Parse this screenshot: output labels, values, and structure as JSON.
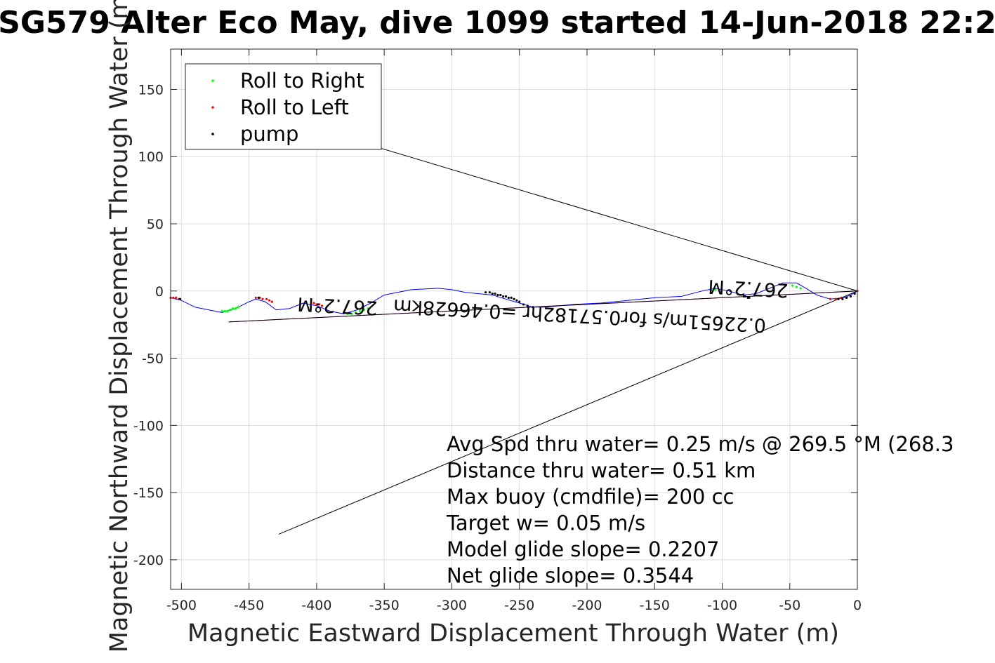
{
  "chart_data": {
    "type": "scatter",
    "title": "SG579 Alter Eco May, dive 1099 started 14-Jun-2018 22:2",
    "xlabel": "Magnetic Eastward Displacement Through Water (m)",
    "ylabel": "Magnetic Northward Displacement Through Water (m)",
    "xlim": [
      -508,
      0
    ],
    "ylim": [
      -222,
      180
    ],
    "grid": true,
    "legend_position": "top-left",
    "xticks": [
      -500,
      -450,
      -400,
      -350,
      -300,
      -250,
      -200,
      -150,
      -100,
      -50,
      0
    ],
    "xtick_labels": [
      "-500",
      "-450",
      "-400",
      "-350",
      "-300",
      "-250",
      "-200",
      "-150",
      "-100",
      "-50",
      "0"
    ],
    "yticks": [
      150,
      100,
      50,
      0,
      -50,
      -100,
      -150,
      -200
    ],
    "ytick_labels": [
      "150",
      "100",
      "50",
      "0",
      "-50",
      "-100",
      "-150",
      "-200"
    ],
    "legend": [
      {
        "label": "Roll to Right",
        "color": "#00ff00"
      },
      {
        "label": "Roll to Left",
        "color": "#ff0000"
      },
      {
        "label": "pump",
        "color": "#000000"
      }
    ],
    "track": {
      "color": "#0000ff",
      "x": [
        -508,
        -500,
        -490,
        -480,
        -470,
        -460,
        -450,
        -445,
        -438,
        -430,
        -420,
        -410,
        -400,
        -390,
        -380,
        -370,
        -360,
        -350,
        -330,
        -310,
        -300,
        -290,
        -280,
        -270,
        -260,
        -250,
        -240,
        -230,
        -210,
        -190,
        -170,
        -150,
        -130,
        -115,
        -105,
        -95,
        -85,
        -75,
        -65,
        -55,
        -45,
        -38,
        -30,
        -20,
        -10,
        -5,
        0
      ],
      "y": [
        -5,
        -7,
        -12,
        -14,
        -16,
        -13,
        -8,
        -6,
        -8,
        -14,
        -13,
        -9,
        -11,
        -15,
        -17,
        -14,
        -9,
        -3,
        1,
        2,
        1,
        -1,
        -2,
        -3,
        -6,
        -9,
        -12,
        -12,
        -10,
        -9,
        -7,
        -5,
        -4,
        0,
        2,
        0,
        -3,
        -2,
        2,
        6,
        6,
        2,
        -3,
        -6,
        -5,
        -3,
        0
      ]
    },
    "series": [
      {
        "name": "Roll to Right",
        "color": "#00ff00",
        "x": [
          -470,
          -468,
          -466,
          -464,
          -462,
          -460,
          -458,
          -377,
          -374,
          -371,
          -368,
          -365,
          -362,
          -108,
          -105,
          -102,
          -48,
          -45,
          -42
        ],
        "y": [
          -15,
          -15,
          -15,
          -14,
          -13,
          -13,
          -12,
          -17,
          -17,
          -16,
          -15,
          -14,
          -13,
          1,
          1,
          0,
          4,
          3,
          2
        ]
      },
      {
        "name": "Roll to Left",
        "color": "#ff0000",
        "x": [
          -508,
          -506,
          -504,
          -502,
          -445,
          -442,
          -440,
          -437,
          -435,
          -433,
          -402,
          -400,
          -398,
          -396,
          -20,
          -16,
          -12,
          -8,
          0
        ],
        "y": [
          -5,
          -5,
          -5,
          -6,
          -5,
          -5,
          -6,
          -6,
          -7,
          -8,
          -9,
          -10,
          -10,
          -11,
          -6,
          -6,
          -5,
          -5,
          0
        ]
      },
      {
        "name": "pump",
        "color": "#000000",
        "x": [
          -501,
          -443,
          -399,
          -275,
          -272,
          -270,
          -268,
          -266,
          -264,
          -262,
          -260,
          -258,
          -256,
          -254,
          -252,
          -250,
          -247,
          -244,
          -240,
          -84,
          -83,
          -81,
          -80,
          -14,
          -11,
          -8,
          -5,
          -2
        ],
        "y": [
          -6,
          -5,
          -10,
          -1,
          -1,
          -2,
          -2,
          -3,
          -3,
          -4,
          -4,
          -5,
          -5,
          -6,
          -7,
          -8,
          -10,
          -11,
          -12,
          -4,
          -4,
          -5,
          -5,
          -6,
          -6,
          -5,
          -4,
          -2
        ]
      }
    ],
    "lines": [
      {
        "name": "net track",
        "color": "#ff00ff",
        "x": [
          -465,
          0
        ],
        "y": [
          -23,
          0
        ]
      },
      {
        "name": "model track",
        "color": "#000000",
        "x": [
          -465,
          0
        ],
        "y": [
          -23,
          0
        ]
      },
      {
        "name": "upper bound",
        "color": "#000000",
        "x": [
          -375,
          0
        ],
        "y": [
          113,
          0
        ]
      },
      {
        "name": "lower bound",
        "color": "#000000",
        "x": [
          -428,
          0
        ],
        "y": [
          -181,
          0
        ]
      }
    ],
    "rotated_annotations": [
      {
        "text": "267.2°M",
        "x": -393,
        "y": -7
      },
      {
        "text": "267.2°M",
        "x": -85,
        "y": 3
      },
      {
        "text": "0.22651m/s for0.57182hr =0.46628km",
        "x": -256,
        "y": -13
      }
    ],
    "stats": [
      "Avg Spd thru water=  0.25 m/s @ 269.5 °M (268.3",
      "Distance thru water=  0.51 km",
      "Max buoy (cmdfile)= 200 cc",
      "Target w= 0.05 m/s",
      "Model glide slope= 0.2207",
      "Net glide slope= 0.3544"
    ]
  }
}
